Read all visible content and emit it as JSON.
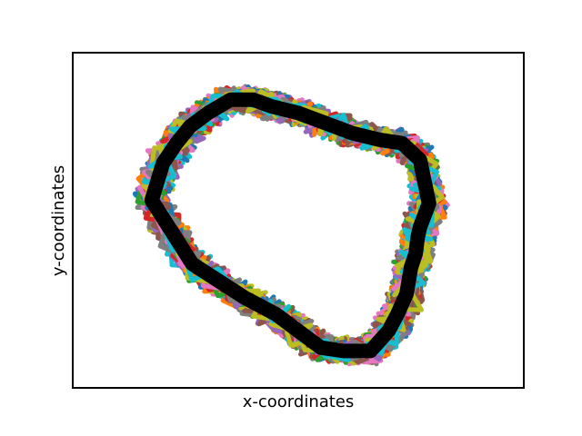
{
  "chart_data": {
    "type": "line",
    "title": "",
    "xlabel": "x-coordinates",
    "ylabel": "y-coordinates",
    "xlim": [
      0,
      1
    ],
    "ylim": [
      0,
      1
    ],
    "ticks_visible": false,
    "grid": false,
    "legend": "none",
    "palette": [
      "#1f77b4",
      "#ff7f0e",
      "#2ca02c",
      "#d62728",
      "#9467bd",
      "#8c564b",
      "#e377c2",
      "#7f7f7f",
      "#bcbd22",
      "#17becf"
    ],
    "noisy_series_count": 60,
    "noisy_series_amplitude": 0.025,
    "mean_path": {
      "color": "#000000",
      "x": [
        0.44,
        0.4,
        0.35,
        0.3,
        0.26,
        0.23,
        0.2,
        0.175,
        0.265,
        0.38,
        0.45,
        0.51,
        0.55,
        0.6,
        0.66,
        0.7,
        0.72,
        0.74,
        0.75,
        0.76,
        0.765,
        0.77,
        0.79,
        0.77,
        0.73,
        0.68,
        0.62,
        0.56,
        0.5,
        0.44
      ],
      "y": [
        0.84,
        0.86,
        0.86,
        0.82,
        0.78,
        0.73,
        0.67,
        0.56,
        0.37,
        0.27,
        0.22,
        0.16,
        0.12,
        0.11,
        0.11,
        0.17,
        0.22,
        0.28,
        0.36,
        0.4,
        0.45,
        0.48,
        0.55,
        0.68,
        0.73,
        0.74,
        0.76,
        0.79,
        0.82,
        0.84
      ]
    }
  }
}
